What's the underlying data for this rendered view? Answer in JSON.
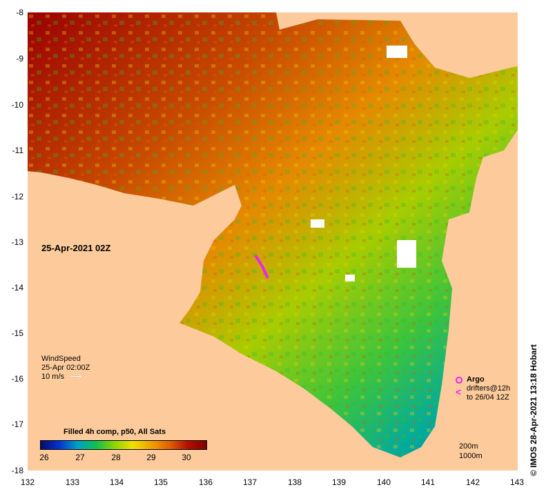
{
  "map": {
    "y_ticks": [
      "-8",
      "-9",
      "-10",
      "-11",
      "-12",
      "-13",
      "-14",
      "-15",
      "-16",
      "-17",
      "-18"
    ],
    "x_ticks": [
      "132",
      "133",
      "134",
      "135",
      "136",
      "137",
      "138",
      "139",
      "140",
      "141",
      "142",
      "143"
    ],
    "lat_range": [
      -18,
      -8
    ],
    "lon_range": [
      132,
      143
    ],
    "land_color": "#fdcb9b",
    "ocean_palette": [
      "#9a0000",
      "#c94b00",
      "#e48a00",
      "#f5c200",
      "#b8d200",
      "#3cc43c",
      "#00a9a0",
      "#1f5fd0",
      "#0a1a8a"
    ]
  },
  "date_label": "25-Apr-2021 02Z",
  "wind_legend": {
    "line1": "WindSpeed",
    "line2": "25-Apr 02:00Z",
    "line3": "10 m/s"
  },
  "colorbar": {
    "title": "Filled 4h comp, p50, All Sats",
    "labels": [
      "26",
      "27",
      "28",
      "29",
      "30"
    ],
    "range": [
      25.9,
      30.5
    ],
    "colors": [
      "#0a0a6a",
      "#0033cc",
      "#00a0c8",
      "#10c050",
      "#8cd400",
      "#f0e000",
      "#f0a000",
      "#e06000",
      "#b01000",
      "#800000"
    ]
  },
  "argo_legend": {
    "argo": "Argo",
    "drifters": "drifters@12h",
    "to": "to 26/04 12Z"
  },
  "bathy_legend": {
    "line1": "200m",
    "line2": "1000m"
  },
  "credit": "© IMOS 28-Apr-2021 13:18 Hobart"
}
